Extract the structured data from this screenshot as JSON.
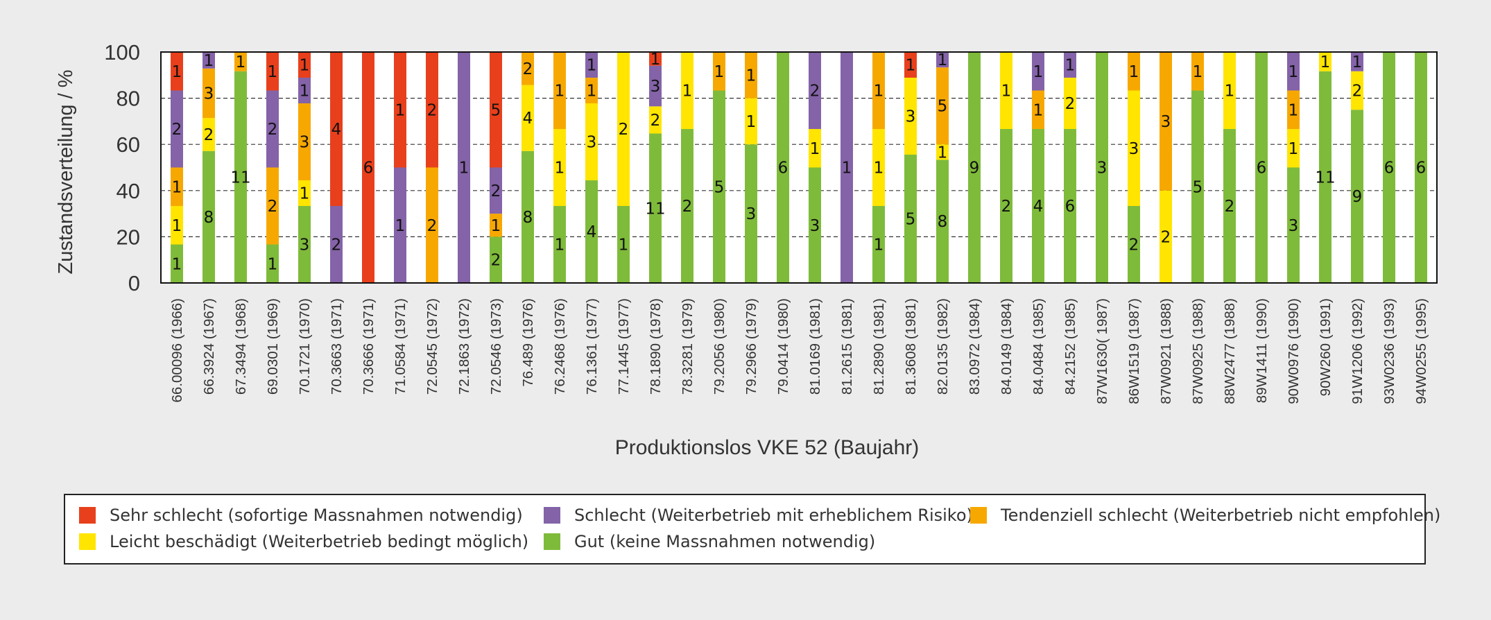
{
  "colors": {
    "sehr_schlecht": "#e8401c",
    "schlecht": "#8463a8",
    "tendenziell": "#f7a800",
    "leicht": "#ffe500",
    "gut": "#7fbb3a"
  },
  "chart_data": {
    "type": "bar",
    "stacked": true,
    "normalized_percent": true,
    "title": "",
    "xlabel": "Produktionslos VKE 52 (Baujahr)",
    "ylabel": "Zustandsverteilung / %",
    "ylim": [
      0,
      100
    ],
    "yticks": [
      "0",
      "20",
      "40",
      "60",
      "80",
      "100"
    ],
    "grid": "horizontal dashed",
    "legend_position": "bottom",
    "categories": [
      "66.00096 (1966)",
      "66.3924 (1967)",
      "67.3494 (1968)",
      "69.0301 (1969)",
      "70.1721 (1970)",
      "70.3663 (1971)",
      "70.3666 (1971)",
      "71.0584 (1971)",
      "72.0545 (1972)",
      "72.1863 (1972)",
      "72.0546 (1973)",
      "76.489 (1976)",
      "76.2468 (1976)",
      "76.1361 (1977)",
      "77.1445 (1977)",
      "78.1890 (1978)",
      "78.3281 (1979)",
      "79.2056 (1980)",
      "79.2966 (1979)",
      "79.0414 (1980)",
      "81.0169 (1981)",
      "81.2615 (1981)",
      "81.2890 (1981)",
      "81.3608 (1981)",
      "82.0135 (1982)",
      "83.0972 (1984)",
      "84.0149 (1984)",
      "84.0484 (1985)",
      "84.2152 (1985)",
      "87W1630( 1987)",
      "86W1519 (1987)",
      "87W0921 (1988)",
      "87W0925 (1988)",
      "88W2477 (1988)",
      "89W1411 (1990)",
      "90W0976 (1990)",
      "90W260 (1991)",
      "91W1206 (1992)",
      "93W0236 (1993)",
      "94W0255 (1995)"
    ],
    "series": [
      {
        "name": "Gut (keine Massnahmen notwendig)",
        "key": "gut",
        "values": [
          1,
          8,
          11,
          1,
          3,
          0,
          0,
          0,
          0,
          0,
          2,
          8,
          1,
          4,
          1,
          11,
          2,
          5,
          3,
          6,
          3,
          0,
          1,
          5,
          8,
          9,
          2,
          4,
          6,
          3,
          2,
          0,
          5,
          2,
          6,
          3,
          11,
          9,
          6,
          6
        ]
      },
      {
        "name": "Leicht beschädigt (Weiterbetrieb bedingt möglich)",
        "key": "leicht",
        "values": [
          1,
          2,
          0,
          0,
          1,
          0,
          0,
          0,
          0,
          0,
          0,
          4,
          1,
          3,
          2,
          2,
          1,
          0,
          1,
          0,
          1,
          0,
          1,
          3,
          1,
          0,
          1,
          0,
          2,
          0,
          3,
          2,
          0,
          1,
          0,
          1,
          1,
          2,
          0,
          0
        ]
      },
      {
        "name": "Tendenziell schlecht (Weiterbetrieb nicht empfohlen)",
        "key": "tendenziell",
        "values": [
          1,
          3,
          1,
          2,
          3,
          0,
          0,
          0,
          2,
          0,
          1,
          2,
          1,
          1,
          0,
          0,
          0,
          1,
          1,
          0,
          0,
          0,
          1,
          0,
          5,
          0,
          0,
          1,
          0,
          0,
          1,
          3,
          1,
          0,
          0,
          1,
          0,
          0,
          0,
          0
        ]
      },
      {
        "name": "Schlecht (Weiterbetrieb mit erheblichem Risiko)",
        "key": "schlecht",
        "values": [
          2,
          1,
          0,
          2,
          1,
          2,
          0,
          1,
          0,
          1,
          2,
          0,
          0,
          1,
          0,
          3,
          0,
          0,
          0,
          0,
          2,
          1,
          0,
          0,
          1,
          0,
          0,
          1,
          1,
          0,
          0,
          0,
          0,
          0,
          0,
          1,
          0,
          1,
          0,
          0
        ]
      },
      {
        "name": "Sehr schlecht (sofortige Massnahmen notwendig)",
        "key": "sehr_schlecht",
        "values": [
          1,
          0,
          0,
          1,
          1,
          4,
          6,
          1,
          2,
          0,
          5,
          0,
          0,
          0,
          0,
          1,
          0,
          0,
          0,
          0,
          0,
          0,
          0,
          1,
          0,
          0,
          0,
          0,
          0,
          0,
          0,
          0,
          0,
          0,
          0,
          0,
          0,
          0,
          0,
          0
        ]
      }
    ]
  },
  "legend": {
    "items": [
      {
        "label": "Sehr schlecht (sofortige Massnahmen notwendig)",
        "key": "sehr_schlecht"
      },
      {
        "label": "Schlecht (Weiterbetrieb mit erheblichem Risiko)",
        "key": "schlecht"
      },
      {
        "label": "Tendenziell schlecht (Weiterbetrieb nicht empfohlen)",
        "key": "tendenziell"
      },
      {
        "label": "Leicht beschädigt (Weiterbetrieb bedingt möglich)",
        "key": "leicht"
      },
      {
        "label": "Gut (keine Massnahmen notwendig)",
        "key": "gut"
      }
    ]
  }
}
